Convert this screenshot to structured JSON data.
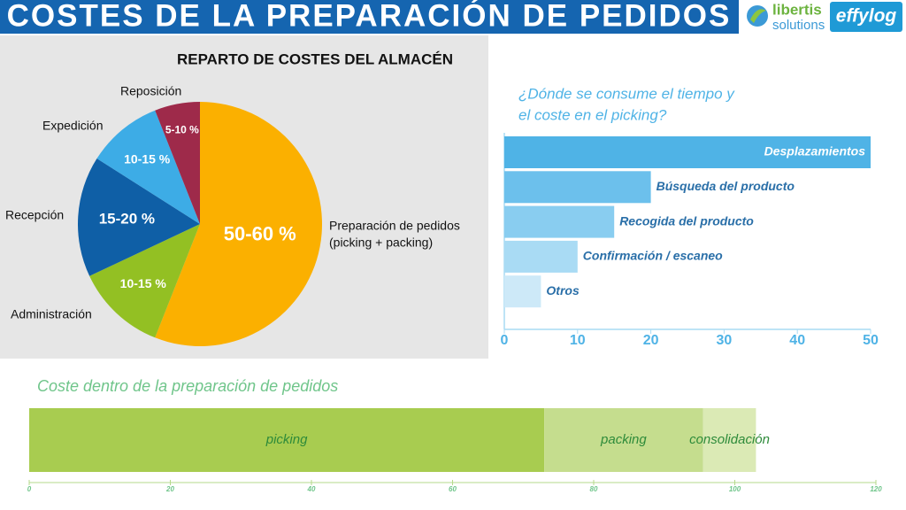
{
  "header": {
    "title": "COSTES DE LA PREPARACIÓN DE PEDIDOS",
    "logo_top": "libertis",
    "logo_bottom": "solutions",
    "brand": "effylog"
  },
  "chart_data": [
    {
      "type": "pie",
      "title": "REPARTO DE COSTES DEL ALMACÉN",
      "categories": [
        [
          "Preparación de pedidos",
          "(picking + packing)"
        ],
        [
          "Administración"
        ],
        [
          "Recepción"
        ],
        [
          "Expedición"
        ],
        [
          "Reposición"
        ]
      ],
      "values": [
        56,
        12,
        16,
        10,
        6
      ],
      "value_labels": [
        "50-60 %",
        "10-15 %",
        "15-20 %",
        "10-15 %",
        "5-10 %"
      ],
      "colors": [
        "#fbb000",
        "#93c023",
        "#0f5fa6",
        "#3dace6",
        "#9e2a4a"
      ]
    },
    {
      "type": "hbar",
      "title": [
        "¿Dónde se consume el tiempo y",
        "el coste en el picking?"
      ],
      "categories": [
        "Desplazamientos",
        "Búsqueda del producto",
        "Recogida del producto",
        "Confirmación / escaneo",
        "Otros"
      ],
      "values": [
        50,
        20,
        15,
        10,
        5
      ],
      "colors": [
        "#4fb3e6",
        "#6cc0ec",
        "#89cdf0",
        "#a9dbf4",
        "#cde9f8"
      ],
      "xlim": [
        0,
        50
      ],
      "xticks": [
        0,
        10,
        20,
        30,
        40,
        50
      ]
    },
    {
      "type": "stacked-hbar",
      "title": "Coste dentro de la preparación de pedidos",
      "series": [
        {
          "name": "picking",
          "color": "#a8cc50",
          "values": [
            73
          ]
        },
        {
          "name": "packing",
          "color": "#c5dd8e",
          "values": [
            22.5
          ]
        },
        {
          "name": "consolidación",
          "color": "#dbeab5",
          "values": [
            7.5
          ]
        }
      ],
      "xlim": [
        0,
        120
      ],
      "xticks": [
        0,
        20,
        40,
        60,
        80,
        100,
        120
      ]
    }
  ]
}
